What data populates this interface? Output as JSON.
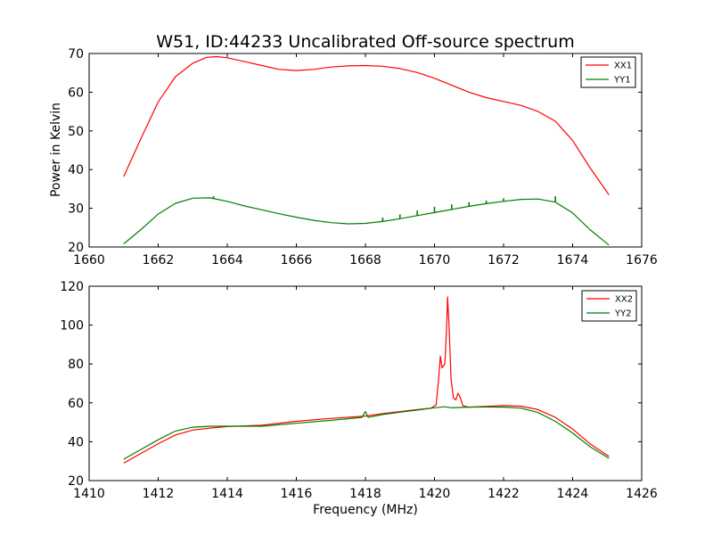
{
  "figure": {
    "title": "W51, ID:44233 Uncalibrated Off-source spectrum",
    "ylabel": "Power in Kelvin",
    "xlabel": "Frequency (MHz)"
  },
  "colors": {
    "red": "#ff0000",
    "green": "#007f00"
  },
  "chart_data": [
    {
      "type": "line",
      "xlim": [
        1660,
        1676
      ],
      "ylim": [
        20,
        70
      ],
      "xticks": [
        1660,
        1662,
        1664,
        1666,
        1668,
        1670,
        1672,
        1674,
        1676
      ],
      "yticks": [
        20,
        30,
        40,
        50,
        60,
        70
      ],
      "legend_position": "top-right",
      "series": [
        {
          "name": "XX1",
          "color": "#ff0000",
          "x": [
            1661.0,
            1661.5,
            1662.0,
            1662.5,
            1663.0,
            1663.4,
            1663.7,
            1664.0,
            1664.5,
            1665.0,
            1665.5,
            1666.0,
            1666.5,
            1667.0,
            1667.5,
            1668.0,
            1668.5,
            1669.0,
            1669.5,
            1670.0,
            1670.5,
            1671.0,
            1671.5,
            1672.0,
            1672.5,
            1673.0,
            1673.5,
            1674.0,
            1674.5,
            1675.05
          ],
          "y": [
            38.2,
            48.0,
            57.5,
            64.0,
            67.5,
            69.0,
            69.2,
            68.9,
            67.9,
            66.9,
            65.9,
            65.6,
            65.9,
            66.5,
            66.8,
            66.9,
            66.7,
            66.1,
            65.1,
            63.6,
            61.8,
            60.0,
            58.6,
            57.6,
            56.6,
            55.0,
            52.5,
            47.5,
            40.5,
            33.5
          ]
        },
        {
          "name": "YY1",
          "color": "#007f00",
          "x": [
            1661.0,
            1661.5,
            1662.0,
            1662.5,
            1663.0,
            1663.5,
            1664.0,
            1664.5,
            1665.0,
            1665.5,
            1666.0,
            1666.5,
            1667.0,
            1667.5,
            1668.0,
            1668.5,
            1669.0,
            1669.5,
            1670.0,
            1670.5,
            1671.0,
            1671.5,
            1672.0,
            1672.5,
            1673.0,
            1673.5,
            1674.0,
            1674.5,
            1675.05
          ],
          "y": [
            20.8,
            24.5,
            28.5,
            31.3,
            32.6,
            32.7,
            31.8,
            30.6,
            29.6,
            28.6,
            27.7,
            26.9,
            26.3,
            26.0,
            26.1,
            26.6,
            27.3,
            28.1,
            28.9,
            29.7,
            30.5,
            31.2,
            31.8,
            32.3,
            32.4,
            31.6,
            28.8,
            24.5,
            20.5
          ]
        }
      ],
      "spikes": [
        {
          "series": "YY1",
          "x": [
            1663.6,
            1668.5,
            1669.0,
            1669.5,
            1670.0,
            1670.5,
            1671.0,
            1671.5,
            1672.0,
            1673.5
          ],
          "height": [
            0.6,
            1.0,
            1.1,
            1.3,
            1.5,
            1.3,
            1.1,
            0.8,
            0.8,
            1.5
          ]
        }
      ]
    },
    {
      "type": "line",
      "xlim": [
        1410,
        1426
      ],
      "ylim": [
        20,
        120
      ],
      "xticks": [
        1410,
        1412,
        1414,
        1416,
        1418,
        1420,
        1422,
        1424,
        1426
      ],
      "yticks": [
        20,
        40,
        60,
        80,
        100,
        120
      ],
      "legend_position": "top-right",
      "series": [
        {
          "name": "XX2",
          "color": "#ff0000",
          "x": [
            1411.0,
            1411.5,
            1412.0,
            1412.5,
            1413.0,
            1413.5,
            1414.0,
            1415.0,
            1416.0,
            1417.0,
            1418.0,
            1418.5,
            1419.0,
            1419.5,
            1419.9,
            1420.05,
            1420.12,
            1420.17,
            1420.22,
            1420.3,
            1420.35,
            1420.38,
            1420.42,
            1420.48,
            1420.55,
            1420.62,
            1420.68,
            1420.74,
            1420.82,
            1421.0,
            1421.5,
            1422.0,
            1422.5,
            1423.0,
            1423.5,
            1424.0,
            1424.5,
            1425.05
          ],
          "y": [
            29.0,
            34.0,
            39.0,
            43.5,
            46.0,
            47.0,
            47.8,
            48.5,
            50.5,
            52.0,
            53.2,
            54.5,
            55.5,
            56.5,
            57.3,
            59.0,
            72.0,
            84.0,
            78.0,
            80.0,
            98.0,
            114.5,
            100.0,
            72.0,
            62.5,
            61.5,
            65.0,
            63.0,
            58.5,
            57.8,
            58.2,
            58.6,
            58.3,
            56.5,
            52.5,
            46.5,
            39.0,
            32.5
          ]
        },
        {
          "name": "YY2",
          "color": "#007f00",
          "x": [
            1411.0,
            1411.5,
            1412.0,
            1412.5,
            1413.0,
            1413.5,
            1414.0,
            1415.0,
            1416.0,
            1417.0,
            1417.9,
            1418.0,
            1418.08,
            1418.2,
            1418.5,
            1419.0,
            1419.5,
            1420.0,
            1420.3,
            1420.5,
            1421.0,
            1421.5,
            1422.0,
            1422.5,
            1423.0,
            1423.5,
            1424.0,
            1424.5,
            1425.05
          ],
          "y": [
            31.0,
            36.0,
            41.0,
            45.5,
            47.5,
            48.0,
            48.0,
            48.0,
            49.5,
            51.0,
            52.5,
            55.5,
            52.5,
            53.0,
            54.0,
            55.2,
            56.3,
            57.5,
            58.0,
            57.5,
            57.8,
            57.9,
            57.8,
            57.3,
            55.0,
            50.5,
            44.5,
            37.5,
            31.5
          ]
        }
      ]
    }
  ]
}
